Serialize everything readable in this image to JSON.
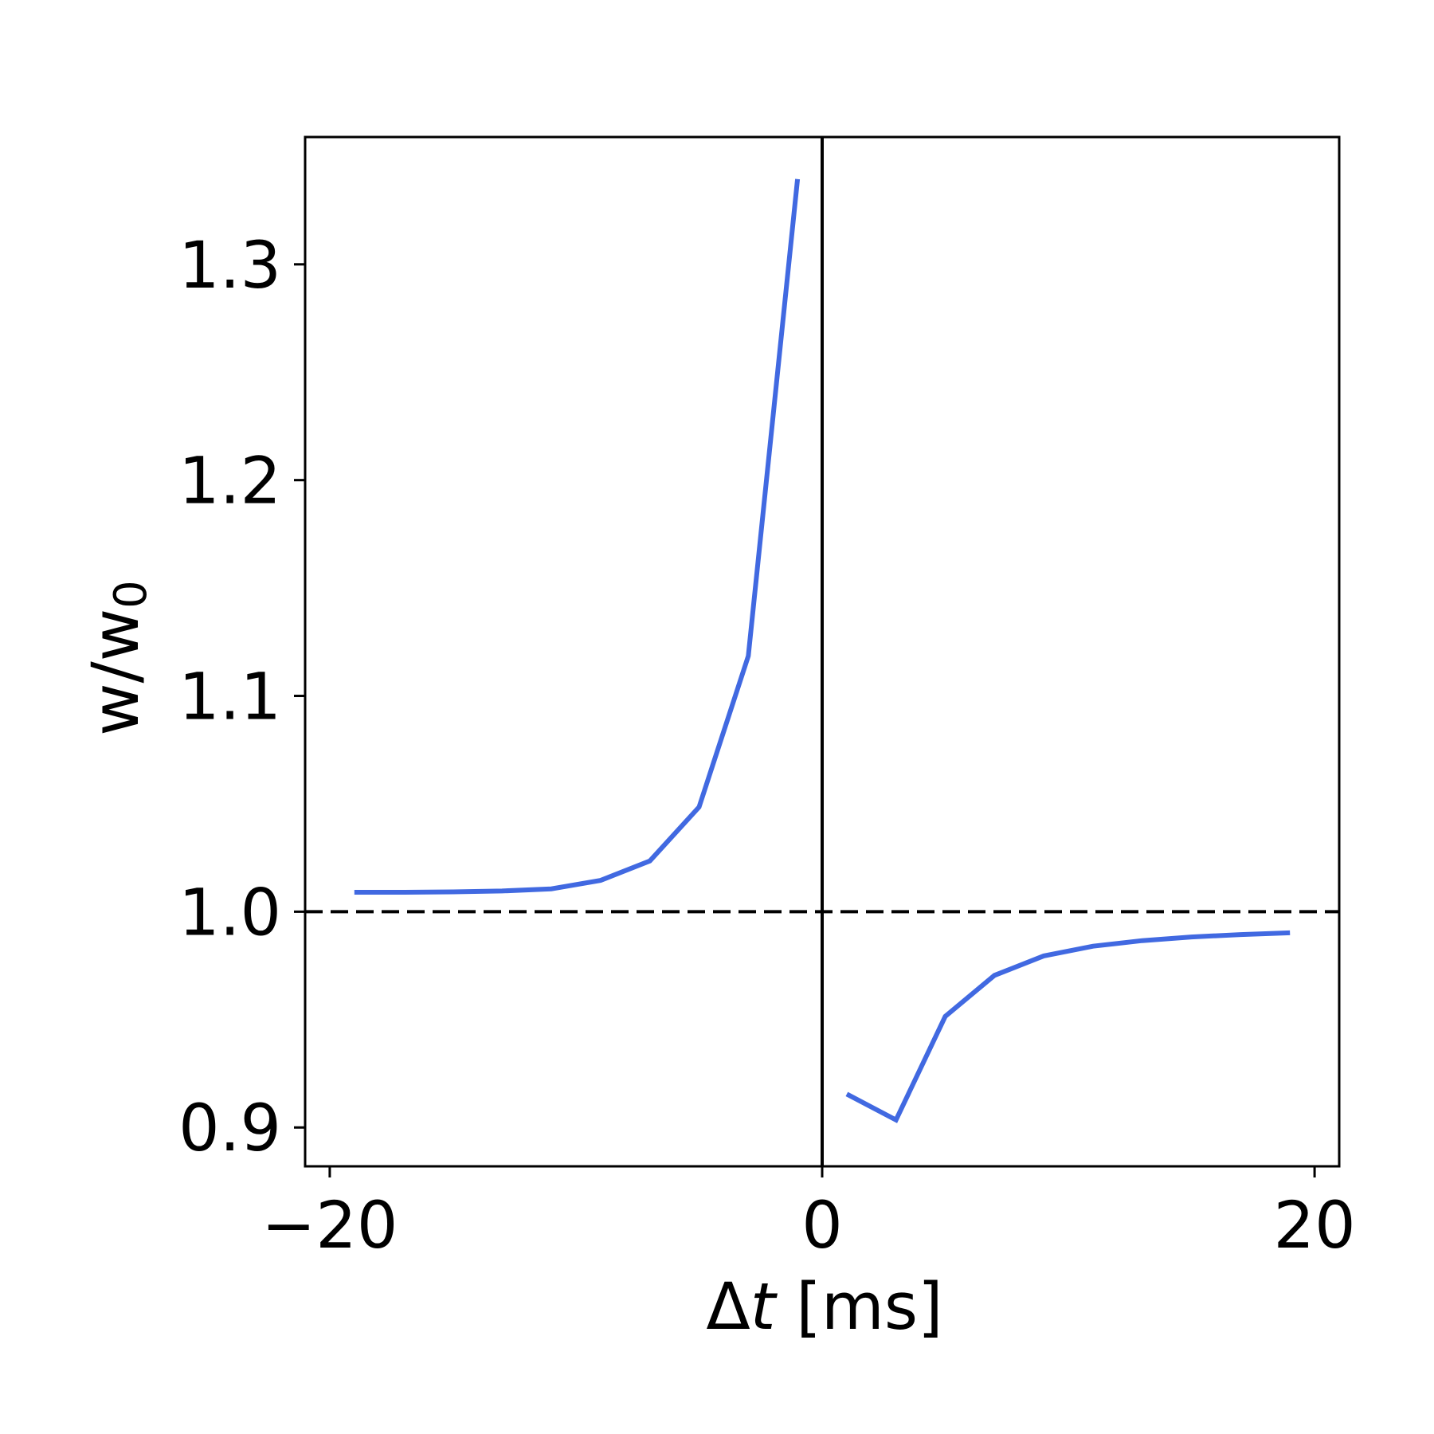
{
  "chart_data": {
    "type": "line",
    "title": "",
    "xlabel": "Δt [ms]",
    "xlabel_parts": {
      "symbol": "Δ",
      "var": "t",
      "unit": " [ms]"
    },
    "ylabel": "w/w₀",
    "ylabel_parts": {
      "base": "w/w",
      "sub": "0"
    },
    "xlim": [
      -21,
      21
    ],
    "ylim": [
      0.882,
      1.359
    ],
    "xticks": [
      -20,
      0,
      20
    ],
    "xtick_labels": [
      "−20",
      "0",
      "20"
    ],
    "yticks": [
      0.9,
      1.0,
      1.1,
      1.2,
      1.3
    ],
    "ytick_labels": [
      "0.9",
      "1.0",
      "1.1",
      "1.2",
      "1.3"
    ],
    "grid": false,
    "reference_lines": [
      {
        "orientation": "horizontal",
        "value": 1.0,
        "style": "dashed",
        "color": "#000000"
      },
      {
        "orientation": "vertical",
        "value": 0,
        "style": "solid",
        "color": "#000000"
      }
    ],
    "series": [
      {
        "color": "#4169e1",
        "segments": [
          {
            "x": [
              -19,
              -17,
              -15,
              -13,
              -11,
              -9,
              -7,
              -5,
              -3,
              -1
            ],
            "y": [
              1.009,
              1.009,
              1.0092,
              1.0096,
              1.0106,
              1.0145,
              1.0235,
              1.0485,
              1.1185,
              1.3395
            ]
          },
          {
            "x": [
              1,
              3,
              5,
              7,
              9,
              11,
              13,
              15,
              17,
              19
            ],
            "y": [
              0.9155,
              0.9035,
              0.9515,
              0.9705,
              0.9795,
              0.984,
              0.9866,
              0.9883,
              0.9894,
              0.9902
            ]
          }
        ]
      }
    ]
  }
}
